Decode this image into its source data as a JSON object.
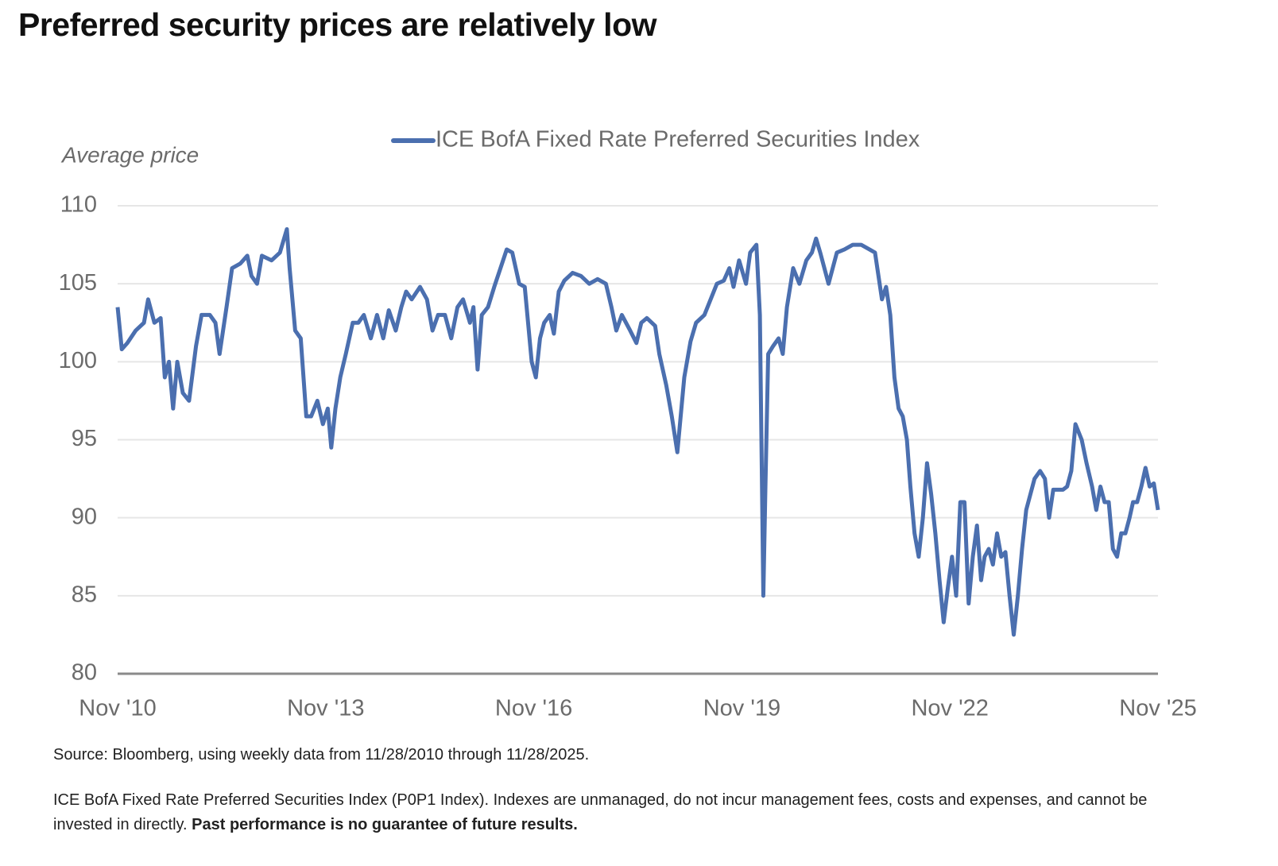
{
  "title": "Preferred security prices are relatively low",
  "chart_data": {
    "type": "line",
    "y_label": "Average price",
    "legend": "top",
    "grid": true,
    "x": [
      2010.9,
      2010.96,
      2011.04,
      2011.16,
      2011.28,
      2011.34,
      2011.43,
      2011.52,
      2011.58,
      2011.64,
      2011.7,
      2011.76,
      2011.84,
      2011.93,
      2012.03,
      2012.11,
      2012.23,
      2012.31,
      2012.37,
      2012.47,
      2012.55,
      2012.67,
      2012.77,
      2012.83,
      2012.91,
      2012.98,
      2013.12,
      2013.24,
      2013.34,
      2013.38,
      2013.46,
      2013.54,
      2013.62,
      2013.69,
      2013.78,
      2013.86,
      2013.93,
      2013.98,
      2014.04,
      2014.11,
      2014.19,
      2014.29,
      2014.37,
      2014.45,
      2014.55,
      2014.64,
      2014.73,
      2014.81,
      2014.91,
      2014.99,
      2015.06,
      2015.14,
      2015.26,
      2015.36,
      2015.44,
      2015.52,
      2015.62,
      2015.71,
      2015.8,
      2015.88,
      2015.98,
      2016.03,
      2016.09,
      2016.15,
      2016.24,
      2016.33,
      2016.42,
      2016.51,
      2016.59,
      2016.69,
      2016.77,
      2016.87,
      2016.93,
      2016.99,
      2017.05,
      2017.13,
      2017.19,
      2017.26,
      2017.34,
      2017.46,
      2017.58,
      2017.7,
      2017.82,
      2017.94,
      2018.02,
      2018.09,
      2018.17,
      2018.29,
      2018.38,
      2018.45,
      2018.53,
      2018.65,
      2018.71,
      2018.81,
      2018.89,
      2018.97,
      2019.07,
      2019.16,
      2019.24,
      2019.36,
      2019.45,
      2019.54,
      2019.64,
      2019.72,
      2019.78,
      2019.86,
      2019.96,
      2020.02,
      2020.11,
      2020.16,
      2020.21,
      2020.24,
      2020.28,
      2020.35,
      2020.43,
      2020.49,
      2020.55,
      2020.64,
      2020.73,
      2020.83,
      2020.91,
      2020.97,
      2021.03,
      2021.15,
      2021.27,
      2021.38,
      2021.5,
      2021.62,
      2021.74,
      2021.82,
      2021.92,
      2021.98,
      2022.04,
      2022.1,
      2022.16,
      2022.22,
      2022.28,
      2022.33,
      2022.39,
      2022.45,
      2022.51,
      2022.57,
      2022.63,
      2022.69,
      2022.75,
      2022.81,
      2022.87,
      2022.93,
      2022.99,
      2023.05,
      2023.11,
      2023.17,
      2023.23,
      2023.29,
      2023.35,
      2023.4,
      2023.46,
      2023.52,
      2023.58,
      2023.64,
      2023.7,
      2023.76,
      2023.82,
      2023.88,
      2023.94,
      2024.0,
      2024.06,
      2024.12,
      2024.2,
      2024.27,
      2024.33,
      2024.39,
      2024.53,
      2024.59,
      2024.65,
      2024.71,
      2024.8,
      2024.87,
      2024.95,
      2025.01,
      2025.07,
      2025.13,
      2025.19,
      2025.25,
      2025.31,
      2025.37,
      2025.43,
      2025.49,
      2025.54,
      2025.6,
      2025.66,
      2025.72,
      2025.78,
      2025.84,
      2025.9
    ],
    "series": [
      {
        "name": "ICE BofA Fixed Rate Preferred Securities Index",
        "color": "#4b6faf",
        "values": [
          103.5,
          100.8,
          101.2,
          102,
          102.5,
          104,
          102.5,
          102.8,
          99,
          100,
          97,
          100,
          98,
          97.5,
          101,
          103,
          103,
          102.5,
          100.5,
          103.5,
          106,
          106.3,
          106.8,
          105.5,
          105,
          106.8,
          106.5,
          107,
          108.5,
          106,
          102,
          101.5,
          96.5,
          96.5,
          97.5,
          96,
          97,
          94.5,
          97,
          99,
          100.5,
          102.5,
          102.5,
          103,
          101.5,
          103,
          101.5,
          103.3,
          102,
          103.5,
          104.5,
          104,
          104.8,
          104,
          102,
          103,
          103,
          101.5,
          103.5,
          104,
          102.5,
          103.5,
          99.5,
          103,
          103.5,
          104.8,
          106,
          107.2,
          107,
          105,
          104.8,
          100,
          99,
          101.5,
          102.5,
          103,
          101.8,
          104.5,
          105.2,
          105.7,
          105.5,
          105,
          105.3,
          105,
          103.5,
          102,
          103,
          102,
          101.2,
          102.5,
          102.8,
          102.3,
          100.5,
          98.5,
          96.5,
          94.2,
          99,
          101.3,
          102.5,
          103,
          104,
          105,
          105.2,
          106,
          104.8,
          106.5,
          105,
          107,
          107.5,
          103,
          85,
          92,
          100.5,
          101,
          101.5,
          100.5,
          103.5,
          106,
          105,
          106.5,
          107,
          107.9,
          107,
          105,
          107,
          107.2,
          107.5,
          107.5,
          107.2,
          107,
          104,
          104.8,
          103,
          99,
          97,
          96.5,
          95,
          92,
          89,
          87.5,
          90,
          93.5,
          91.5,
          89,
          86,
          83.3,
          85.5,
          87.5,
          85,
          91,
          91,
          84.5,
          87.5,
          89.5,
          86,
          87.5,
          88,
          87,
          89,
          87.5,
          87.8,
          85,
          82.5,
          85,
          88,
          90.5,
          91.5,
          92.5,
          93,
          92.5,
          90,
          91.8,
          91.8,
          92,
          93,
          96,
          95,
          93.5,
          92,
          90.5,
          92,
          91,
          91,
          88,
          87.5,
          89,
          89,
          90,
          91,
          91,
          92,
          93.2,
          92,
          92.2,
          90.5
        ]
      }
    ],
    "xlim": [
      2010.9,
      2025.9
    ],
    "xticks": [
      {
        "value": 2010.9,
        "label": "Nov '10"
      },
      {
        "value": 2013.9,
        "label": "Nov '13"
      },
      {
        "value": 2016.9,
        "label": "Nov '16"
      },
      {
        "value": 2019.9,
        "label": "Nov '19"
      },
      {
        "value": 2022.9,
        "label": "Nov '22"
      },
      {
        "value": 2025.9,
        "label": "Nov '25"
      }
    ],
    "ylim": [
      80,
      110
    ],
    "yticks": [
      80,
      85,
      90,
      95,
      100,
      105,
      110
    ]
  },
  "source": "Source: Bloomberg, using weekly data from 11/28/2010 through 11/28/2025.",
  "footnote": {
    "text": "ICE BofA Fixed Rate Preferred Securities Index (P0P1 Index). Indexes are unmanaged, do not incur management fees, costs and expenses, and cannot be invested in directly.",
    "bold": "Past performance is no guarantee of future results."
  }
}
